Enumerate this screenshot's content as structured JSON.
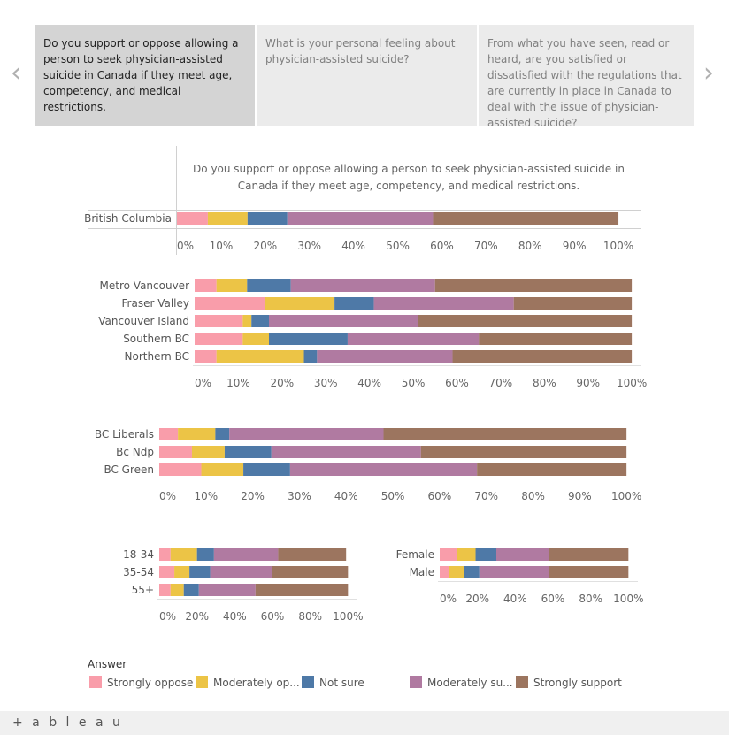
{
  "tabs": [
    {
      "text": "Do you support or oppose allowing a person to seek physician-assisted suicide in Canada if they meet age, competency, and medical restrictions.",
      "active": true
    },
    {
      "text": "What is your personal feeling about physician-assisted suicide?",
      "active": false
    },
    {
      "text": "From what you have seen, read or heard, are you satisfied or dissatisfied with the regulations that are currently in place in Canada to deal with the issue of physician-assisted suicide?",
      "active": false
    }
  ],
  "nav": {
    "prev_icon": "‹",
    "next_icon": "›"
  },
  "colors": {
    "Strongly oppose": "#f99daa",
    "Moderately oppose": "#ecc446",
    "Not sure": "#4e79a7",
    "Moderately support": "#b07aa1",
    "Strongly support": "#9c755f"
  },
  "legend": {
    "title": "Answer",
    "items": [
      "Strongly oppose",
      "Moderately op...",
      "Not sure",
      "Moderately su...",
      "Strongly support"
    ]
  },
  "chart_data": [
    {
      "type": "bar",
      "orientation": "horizontal-stacked-percent",
      "title": "Do you support or oppose allowing a person to seek physician-assisted suicide in Canada if they meet age, competency, and medical restrictions.",
      "categories": [
        "British Columbia"
      ],
      "series": [
        {
          "name": "Strongly oppose",
          "values": [
            7
          ]
        },
        {
          "name": "Moderately oppose",
          "values": [
            9
          ]
        },
        {
          "name": "Not sure",
          "values": [
            9
          ]
        },
        {
          "name": "Moderately support",
          "values": [
            33
          ]
        },
        {
          "name": "Strongly support",
          "values": [
            42
          ]
        }
      ],
      "ticks": [
        "0%",
        "10%",
        "20%",
        "30%",
        "40%",
        "50%",
        "60%",
        "70%",
        "80%",
        "90%",
        "100%"
      ],
      "xlim": [
        0,
        105
      ]
    },
    {
      "type": "bar",
      "orientation": "horizontal-stacked-percent",
      "categories": [
        "Metro Vancouver",
        "Fraser Valley",
        "Vancouver Island",
        "Southern BC",
        "Northern BC"
      ],
      "series": [
        {
          "name": "Strongly oppose",
          "values": [
            5,
            16,
            11,
            11,
            5
          ]
        },
        {
          "name": "Moderately oppose",
          "values": [
            7,
            16,
            2,
            6,
            20
          ]
        },
        {
          "name": "Not sure",
          "values": [
            10,
            9,
            4,
            18,
            3
          ]
        },
        {
          "name": "Moderately support",
          "values": [
            33,
            32,
            34,
            30,
            31
          ]
        },
        {
          "name": "Strongly support",
          "values": [
            45,
            27,
            49,
            35,
            41
          ]
        }
      ],
      "ticks": [
        "0%",
        "10%",
        "20%",
        "30%",
        "40%",
        "50%",
        "60%",
        "70%",
        "80%",
        "90%",
        "100%"
      ],
      "xlim": [
        0,
        102
      ]
    },
    {
      "type": "bar",
      "orientation": "horizontal-stacked-percent",
      "categories": [
        "BC Liberals",
        "Bc Ndp",
        "BC Green"
      ],
      "series": [
        {
          "name": "Strongly oppose",
          "values": [
            4,
            7,
            9
          ]
        },
        {
          "name": "Moderately oppose",
          "values": [
            8,
            7,
            9
          ]
        },
        {
          "name": "Not sure",
          "values": [
            3,
            10,
            10
          ]
        },
        {
          "name": "Moderately support",
          "values": [
            33,
            32,
            40
          ]
        },
        {
          "name": "Strongly support",
          "values": [
            52,
            44,
            32
          ]
        }
      ],
      "ticks": [
        "0%",
        "10%",
        "20%",
        "30%",
        "40%",
        "50%",
        "60%",
        "70%",
        "80%",
        "90%",
        "100%"
      ],
      "xlim": [
        0,
        103
      ]
    },
    {
      "type": "bar",
      "orientation": "horizontal-stacked-percent",
      "categories": [
        "18-34",
        "35-54",
        "55+"
      ],
      "series": [
        {
          "name": "Strongly oppose",
          "values": [
            6,
            8,
            6
          ]
        },
        {
          "name": "Moderately oppose",
          "values": [
            14,
            8,
            7
          ]
        },
        {
          "name": "Not sure",
          "values": [
            9,
            11,
            8
          ]
        },
        {
          "name": "Moderately support",
          "values": [
            34,
            33,
            30
          ]
        },
        {
          "name": "Strongly support",
          "values": [
            36,
            40,
            49
          ]
        }
      ],
      "ticks": [
        "0%",
        "20%",
        "40%",
        "60%",
        "80%",
        "100%"
      ],
      "xlim": [
        0,
        105
      ]
    },
    {
      "type": "bar",
      "orientation": "horizontal-stacked-percent",
      "categories": [
        "Female",
        "Male"
      ],
      "series": [
        {
          "name": "Strongly oppose",
          "values": [
            9,
            5
          ]
        },
        {
          "name": "Moderately oppose",
          "values": [
            10,
            8
          ]
        },
        {
          "name": "Not sure",
          "values": [
            11,
            8
          ]
        },
        {
          "name": "Moderately support",
          "values": [
            28,
            37
          ]
        },
        {
          "name": "Strongly support",
          "values": [
            42,
            42
          ]
        }
      ],
      "ticks": [
        "0%",
        "20%",
        "40%",
        "60%",
        "80%",
        "100%"
      ],
      "xlim": [
        0,
        105
      ]
    }
  ],
  "footer": {
    "logo_text": "+ a b l e a u"
  }
}
